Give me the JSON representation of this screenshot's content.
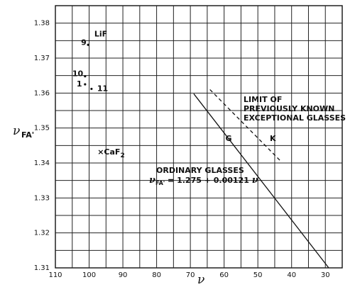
{
  "chart_data": {
    "type": "scatter",
    "xlim": [
      110,
      25
    ],
    "ylim": [
      1.31,
      1.385
    ],
    "x_ticks": [
      110,
      100,
      90,
      80,
      70,
      60,
      50,
      40,
      30
    ],
    "y_ticks": [
      1.31,
      1.32,
      1.33,
      1.34,
      1.35,
      1.36,
      1.37,
      1.38
    ],
    "x_tick_labels": [
      "110",
      "100",
      "90",
      "80",
      "70",
      "60",
      "50",
      "40",
      "30"
    ],
    "y_tick_labels": [
      "1.31",
      "1.32",
      "1.33",
      "1.34",
      "1.35",
      "1.36",
      "1.37",
      "1.38"
    ],
    "x_label_main": "ν",
    "y_label_main": "ν",
    "y_label_sub": "FA'",
    "grid": true,
    "points": [
      {
        "label": "LiF",
        "x": 99.3,
        "y": 1.377
      },
      {
        "label": "9",
        "x": 100.3,
        "y": 1.3738
      },
      {
        "label": "10",
        "x": 101.2,
        "y": 1.3648
      },
      {
        "label": "1",
        "x": 101.2,
        "y": 1.3625
      },
      {
        "label": "11",
        "x": 99.3,
        "y": 1.3612
      },
      {
        "label": "CaF2",
        "x": 96.7,
        "y": 1.3432
      },
      {
        "label": "G",
        "x": 57.5,
        "y": 1.3473
      },
      {
        "label": "K",
        "x": 47.5,
        "y": 1.3473
      }
    ],
    "annotations": [
      {
        "key": "limit",
        "lines": [
          "LIMIT OF",
          "PREVIOUSLY KNOWN",
          "EXCEPTIONAL GLASSES"
        ]
      },
      {
        "key": "ordinary",
        "line1": "ORDINARY GLASSES",
        "eq_nu": "ν",
        "eq_sub": "FA'",
        "eq_rest": " = 1.275 + 0.00121 ",
        "eq_end": "ν"
      }
    ],
    "series": [
      {
        "name": "ORDINARY GLASSES",
        "style": "solid",
        "x": [
          69,
          29
        ],
        "y": [
          1.3598,
          1.31
        ]
      },
      {
        "name": "LIMIT OF PREVIOUSLY KNOWN EXCEPTIONAL GLASSES",
        "style": "dashed",
        "x": [
          64.2,
          43.2
        ],
        "y": [
          1.361,
          1.3405
        ]
      }
    ]
  }
}
